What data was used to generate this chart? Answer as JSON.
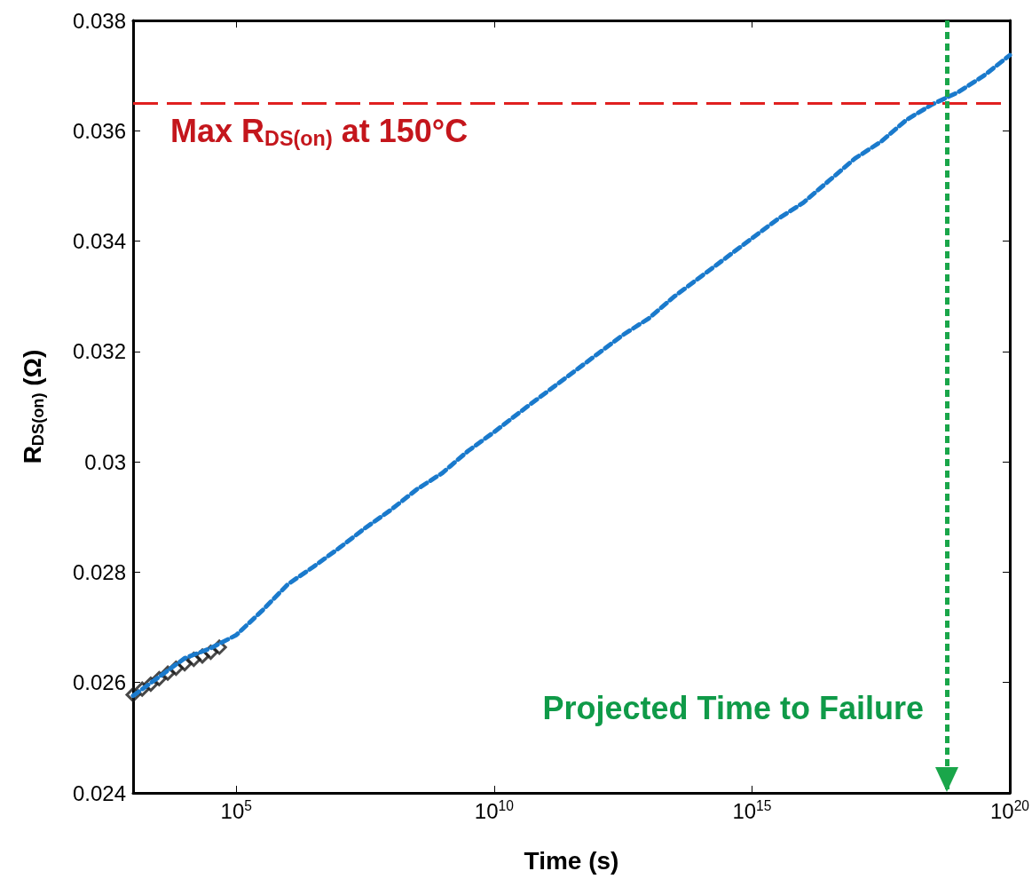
{
  "chart_data": {
    "type": "line",
    "xlabel": "Time (s)",
    "ylabel": "R$_{DS(on)}$ (Ω)",
    "log": "x",
    "xlim": [
      1000.0,
      1e+20
    ],
    "xticks": [
      {
        "value": 100000.0,
        "label": "10$^{5}$"
      },
      {
        "value": 10000000000.0,
        "label": "10$^{10}$"
      },
      {
        "value": 1000000000000000.0,
        "label": "10$^{15}$"
      },
      {
        "value": 1e+20,
        "label": "10$^{20}$"
      }
    ],
    "ylim": [
      0.024,
      0.038
    ],
    "yticks": [
      0.024,
      0.026,
      0.028,
      0.03,
      0.032,
      0.034,
      0.036,
      0.038
    ],
    "grid": false,
    "series": [
      {
        "color": "#1a7acc",
        "line_style": "dashed",
        "marker": "none",
        "x": [
          1000.0,
          3160.0,
          10000.0,
          31600.0,
          100000.0,
          316000.0,
          1000000.0,
          3160000.0,
          10000000.0,
          31600000.0,
          100000000.0,
          316000000.0,
          1000000000.0,
          3160000000.0,
          10000000000.0,
          31600000000.0,
          100000000000.0,
          316000000000.0,
          1000000000000.0,
          3160000000000.0,
          10000000000000.0,
          31600000000000.0,
          100000000000000.0,
          316000000000000.0,
          1000000000000000.0,
          3160000000000000.0,
          1e+16,
          3.16e+16,
          1e+17,
          3.16e+17,
          1e+18,
          3.16e+18,
          1e+19,
          3.16e+19,
          1e+20
        ],
        "values": [
          0.02576,
          0.0261,
          0.02644,
          0.02662,
          0.02686,
          0.0273,
          0.02778,
          0.0281,
          0.02844,
          0.0288,
          0.02913,
          0.0295,
          0.0298,
          0.0302,
          0.03054,
          0.0309,
          0.03125,
          0.0316,
          0.03195,
          0.0323,
          0.0326,
          0.033,
          0.03335,
          0.0337,
          0.03405,
          0.0344,
          0.0347,
          0.0351,
          0.0355,
          0.0358,
          0.0362,
          0.03648,
          0.0367,
          0.037,
          0.03737
        ]
      },
      {
        "type": "scatter",
        "color": "#1a1a1a",
        "marker": "diamond",
        "x": [
          1000.0,
          1500.0,
          2200.0,
          3200.0,
          4700.0,
          6800.0,
          10000.0,
          15000.0,
          22000.0,
          32000.0,
          47000.0
        ],
        "values": [
          0.02578,
          0.02588,
          0.02597,
          0.02607,
          0.02617,
          0.02626,
          0.02634,
          0.02642,
          0.02648,
          0.02655,
          0.02664
        ]
      }
    ],
    "ref_lines": [
      {
        "axis": "y",
        "value": 0.0365,
        "label": "Max R$_{DS(on)}$ at 150°C",
        "color": "#e0201f",
        "line_style": "dashed"
      },
      {
        "axis": "x",
        "value": 6e+18,
        "label": "Projected Time to Failure",
        "color": "#1aa64a",
        "line_style": "dashed"
      }
    ]
  }
}
